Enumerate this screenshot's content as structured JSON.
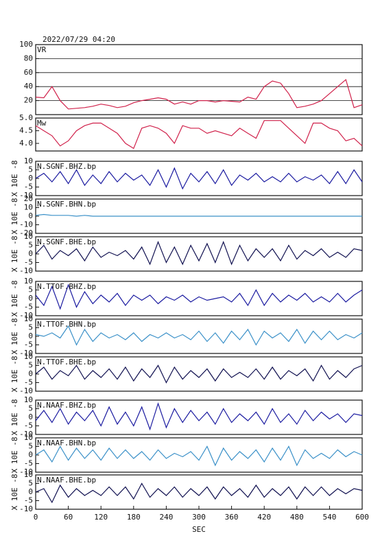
{
  "chart_data": [
    {
      "type": "line",
      "title": "2022/07/29 04:20",
      "xlim": [
        0,
        600
      ],
      "ylim": [
        0,
        100
      ],
      "yticks": [
        20,
        40,
        60,
        80,
        100
      ],
      "grid": true,
      "x": [
        0,
        15,
        30,
        45,
        60,
        75,
        90,
        105,
        120,
        135,
        150,
        165,
        180,
        195,
        210,
        225,
        240,
        255,
        270,
        285,
        300,
        315,
        330,
        345,
        360,
        375,
        390,
        405,
        420,
        435,
        450,
        465,
        480,
        495,
        510,
        525,
        540,
        555,
        570,
        585,
        600
      ],
      "series": [
        {
          "name": "VR",
          "color": "#d0204a",
          "values": [
            25,
            24,
            40,
            20,
            8,
            9,
            10,
            12,
            15,
            13,
            10,
            12,
            17,
            20,
            22,
            24,
            22,
            15,
            18,
            15,
            20,
            20,
            18,
            20,
            19,
            18,
            25,
            22,
            40,
            48,
            45,
            30,
            10,
            12,
            15,
            20,
            30,
            40,
            50,
            10,
            14
          ]
        }
      ]
    },
    {
      "type": "line",
      "xlim": [
        0,
        600
      ],
      "ylim": [
        3.7,
        5.0
      ],
      "yticks": [
        {
          "value": 4,
          "label": "4.0"
        },
        4.5,
        {
          "value": 5,
          "label": "5.0"
        }
      ],
      "grid": false,
      "x": [
        0,
        15,
        30,
        45,
        60,
        75,
        90,
        105,
        120,
        135,
        150,
        165,
        180,
        195,
        210,
        225,
        240,
        255,
        270,
        285,
        300,
        315,
        330,
        345,
        360,
        375,
        390,
        405,
        420,
        435,
        450,
        465,
        480,
        495,
        510,
        525,
        540,
        555,
        570,
        585,
        600
      ],
      "series": [
        {
          "name": "Mw",
          "color": "#d0204a",
          "values": [
            4.7,
            4.5,
            4.3,
            3.9,
            4.1,
            4.5,
            4.7,
            4.8,
            4.8,
            4.6,
            4.4,
            4.0,
            3.8,
            4.6,
            4.7,
            4.6,
            4.4,
            4.0,
            4.7,
            4.6,
            4.6,
            4.4,
            4.5,
            4.4,
            4.3,
            4.6,
            4.4,
            4.2,
            4.9,
            4.9,
            4.9,
            4.6,
            4.3,
            4.0,
            4.8,
            4.8,
            4.6,
            4.5,
            4.1,
            4.2,
            3.9
          ]
        }
      ]
    },
    {
      "type": "line",
      "ylabel": "X 10E -8",
      "xlim": [
        0,
        600
      ],
      "ylim": [
        -10,
        10
      ],
      "yticks": [
        -10,
        -5,
        0,
        5,
        10
      ],
      "grid": false,
      "x": [
        0,
        15,
        30,
        45,
        60,
        75,
        90,
        105,
        120,
        135,
        150,
        165,
        180,
        195,
        210,
        225,
        240,
        255,
        270,
        285,
        300,
        315,
        330,
        345,
        360,
        375,
        390,
        405,
        420,
        435,
        450,
        465,
        480,
        495,
        510,
        525,
        540,
        555,
        570,
        585,
        600
      ],
      "series": [
        {
          "name": "N.SGNF.BHZ.bp",
          "color": "#1a1aa0",
          "values": [
            0,
            3,
            -2,
            4,
            -3,
            5,
            -4,
            2,
            -3,
            4,
            -2,
            3,
            -1,
            2,
            -4,
            5,
            -5,
            6,
            -6,
            3,
            -2,
            4,
            -3,
            5,
            -4,
            2,
            -1,
            3,
            -2,
            1,
            -2,
            3,
            -2,
            1,
            -1,
            2,
            -3,
            4,
            -3,
            5,
            -2
          ]
        }
      ]
    },
    {
      "type": "line",
      "ylabel": "X 10E -8",
      "xlim": [
        0,
        600
      ],
      "ylim": [
        -20,
        20
      ],
      "yticks": [
        -20,
        -10,
        0,
        10,
        20
      ],
      "grid": false,
      "x": [
        0,
        15,
        30,
        45,
        60,
        75,
        90,
        105,
        120,
        135,
        150,
        165,
        180,
        195,
        210,
        225,
        240,
        255,
        270,
        285,
        300,
        315,
        330,
        345,
        360,
        375,
        390,
        405,
        420,
        435,
        450,
        465,
        480,
        495,
        510,
        525,
        540,
        555,
        570,
        585,
        600
      ],
      "series": [
        {
          "name": "N.SGNF.BHN.bp",
          "color": "#3a90c8",
          "values": [
            1,
            2,
            1,
            1,
            1,
            0,
            1,
            0,
            0,
            0,
            0,
            0,
            0,
            0,
            0,
            0,
            0,
            0,
            0,
            0,
            0,
            0,
            0,
            0,
            0,
            0,
            0,
            0,
            0,
            0,
            0,
            0,
            0,
            0,
            0,
            0,
            0,
            0,
            0,
            0,
            0
          ]
        }
      ]
    },
    {
      "type": "line",
      "ylabel": "X 10E -8",
      "xlim": [
        0,
        600
      ],
      "ylim": [
        -10,
        10
      ],
      "yticks": [
        -10,
        -5,
        0,
        5,
        10
      ],
      "grid": false,
      "x": [
        0,
        15,
        30,
        45,
        60,
        75,
        90,
        105,
        120,
        135,
        150,
        165,
        180,
        195,
        210,
        225,
        240,
        255,
        270,
        285,
        300,
        315,
        330,
        345,
        360,
        375,
        390,
        405,
        420,
        435,
        450,
        465,
        480,
        495,
        510,
        525,
        540,
        555,
        570,
        585,
        600
      ],
      "series": [
        {
          "name": "N.SGNF.BHE.bp",
          "color": "#101050",
          "values": [
            0,
            5,
            -3,
            2,
            -1,
            3,
            -4,
            4,
            -2,
            1,
            -1,
            2,
            -3,
            4,
            -6,
            7,
            -5,
            4,
            -6,
            5,
            -4,
            6,
            -5,
            7,
            -6,
            5,
            -4,
            3,
            -2,
            3,
            -4,
            5,
            -3,
            2,
            -1,
            3,
            -2,
            1,
            -2,
            3,
            2
          ]
        }
      ]
    },
    {
      "type": "line",
      "ylabel": "X 10E -8",
      "xlim": [
        0,
        600
      ],
      "ylim": [
        -10,
        10
      ],
      "yticks": [
        -10,
        -5,
        0,
        5,
        10
      ],
      "grid": false,
      "x": [
        0,
        15,
        30,
        45,
        60,
        75,
        90,
        105,
        120,
        135,
        150,
        165,
        180,
        195,
        210,
        225,
        240,
        255,
        270,
        285,
        300,
        315,
        330,
        345,
        360,
        375,
        390,
        405,
        420,
        435,
        450,
        465,
        480,
        495,
        510,
        525,
        540,
        555,
        570,
        585,
        600
      ],
      "series": [
        {
          "name": "N.TTOF.BHZ.bp",
          "color": "#1a1aa0",
          "values": [
            2,
            -4,
            7,
            -6,
            8,
            -5,
            4,
            -3,
            2,
            -2,
            3,
            -4,
            2,
            -1,
            2,
            -3,
            1,
            -1,
            2,
            -2,
            1,
            -1,
            0,
            1,
            -2,
            3,
            -4,
            5,
            -4,
            3,
            -2,
            2,
            -1,
            3,
            -2,
            1,
            -2,
            3,
            -2,
            2,
            5
          ]
        }
      ]
    },
    {
      "type": "line",
      "ylabel": "X 10E -8",
      "xlim": [
        0,
        600
      ],
      "ylim": [
        -10,
        10
      ],
      "yticks": [
        -10,
        -5,
        0,
        5,
        10
      ],
      "grid": false,
      "x": [
        0,
        15,
        30,
        45,
        60,
        75,
        90,
        105,
        120,
        135,
        150,
        165,
        180,
        195,
        210,
        225,
        240,
        255,
        270,
        285,
        300,
        315,
        330,
        345,
        360,
        375,
        390,
        405,
        420,
        435,
        450,
        465,
        480,
        495,
        510,
        525,
        540,
        555,
        570,
        585,
        600
      ],
      "series": [
        {
          "name": "N.TTOF.BHN.bp",
          "color": "#3a90c8",
          "values": [
            1,
            0,
            2,
            -1,
            6,
            -5,
            4,
            -3,
            2,
            -1,
            1,
            -2,
            2,
            -3,
            1,
            -1,
            2,
            -1,
            1,
            -2,
            3,
            -3,
            2,
            -4,
            3,
            -2,
            4,
            -5,
            3,
            -1,
            2,
            -3,
            4,
            -4,
            3,
            -2,
            3,
            -2,
            1,
            -1,
            2
          ]
        }
      ]
    },
    {
      "type": "line",
      "ylabel": "X 10E -8",
      "xlim": [
        0,
        600
      ],
      "ylim": [
        -10,
        10
      ],
      "yticks": [
        -10,
        -5,
        0,
        5,
        10
      ],
      "grid": false,
      "x": [
        0,
        15,
        30,
        45,
        60,
        75,
        90,
        105,
        120,
        135,
        150,
        165,
        180,
        195,
        210,
        225,
        240,
        255,
        270,
        285,
        300,
        315,
        330,
        345,
        360,
        375,
        390,
        405,
        420,
        435,
        450,
        465,
        480,
        495,
        510,
        525,
        540,
        555,
        570,
        585,
        600
      ],
      "series": [
        {
          "name": "N.TTOF.BHE.bp",
          "color": "#101050",
          "values": [
            0,
            4,
            -3,
            2,
            -1,
            5,
            -3,
            2,
            -2,
            3,
            -3,
            4,
            -4,
            3,
            -2,
            5,
            -5,
            4,
            -3,
            2,
            -2,
            3,
            -4,
            3,
            -2,
            1,
            -2,
            3,
            -3,
            4,
            -3,
            2,
            -1,
            3,
            -4,
            5,
            -3,
            2,
            -2,
            3,
            5
          ]
        }
      ]
    },
    {
      "type": "line",
      "ylabel": "X 10E -8",
      "xlim": [
        0,
        600
      ],
      "ylim": [
        -10,
        10
      ],
      "yticks": [
        -10,
        -5,
        0,
        5,
        10
      ],
      "grid": false,
      "x": [
        0,
        15,
        30,
        45,
        60,
        75,
        90,
        105,
        120,
        135,
        150,
        165,
        180,
        195,
        210,
        225,
        240,
        255,
        270,
        285,
        300,
        315,
        330,
        345,
        360,
        375,
        390,
        405,
        420,
        435,
        450,
        465,
        480,
        495,
        510,
        525,
        540,
        555,
        570,
        585,
        600
      ],
      "series": [
        {
          "name": "N.NAAF.BHZ.bp",
          "color": "#1a1aa0",
          "values": [
            -2,
            4,
            -3,
            5,
            -4,
            3,
            -2,
            4,
            -5,
            6,
            -4,
            3,
            -5,
            6,
            -7,
            8,
            -6,
            5,
            -3,
            4,
            -2,
            3,
            -4,
            5,
            -3,
            2,
            -2,
            3,
            -4,
            5,
            -3,
            2,
            -4,
            4,
            -2,
            3,
            -1,
            2,
            -3,
            2,
            1
          ]
        }
      ]
    },
    {
      "type": "line",
      "ylabel": "X 10E -8",
      "xlim": [
        0,
        600
      ],
      "ylim": [
        -10,
        10
      ],
      "yticks": [
        -10,
        -5,
        0,
        5,
        10
      ],
      "grid": false,
      "x": [
        0,
        15,
        30,
        45,
        60,
        75,
        90,
        105,
        120,
        135,
        150,
        165,
        180,
        195,
        210,
        225,
        240,
        255,
        270,
        285,
        300,
        315,
        330,
        345,
        360,
        375,
        390,
        405,
        420,
        435,
        450,
        465,
        480,
        495,
        510,
        525,
        540,
        555,
        570,
        585,
        600
      ],
      "series": [
        {
          "name": "N.NAAF.BHN.bp",
          "color": "#3a90c8",
          "values": [
            0,
            3,
            -4,
            5,
            -3,
            4,
            -2,
            3,
            -3,
            4,
            -2,
            3,
            -2,
            2,
            -3,
            3,
            -2,
            1,
            -1,
            2,
            -3,
            5,
            -6,
            4,
            -3,
            2,
            -2,
            3,
            -4,
            4,
            -3,
            5,
            -6,
            3,
            -2,
            1,
            -2,
            3,
            -1,
            2,
            0
          ]
        }
      ]
    },
    {
      "type": "line",
      "ylabel": "X 10E -8",
      "xlabel": "SEC",
      "xlim": [
        0,
        600
      ],
      "xticks": [
        0,
        60,
        120,
        180,
        240,
        300,
        360,
        420,
        480,
        540,
        600
      ],
      "ylim": [
        -10,
        10
      ],
      "yticks": [
        -10,
        -5,
        0,
        5,
        10
      ],
      "grid": false,
      "x": [
        0,
        15,
        30,
        45,
        60,
        75,
        90,
        105,
        120,
        135,
        150,
        165,
        180,
        195,
        210,
        225,
        240,
        255,
        270,
        285,
        300,
        315,
        330,
        345,
        360,
        375,
        390,
        405,
        420,
        435,
        450,
        465,
        480,
        495,
        510,
        525,
        540,
        555,
        570,
        585,
        600
      ],
      "series": [
        {
          "name": "N.NAAF.BHE.bp",
          "color": "#101050",
          "values": [
            0,
            2,
            -6,
            4,
            -3,
            2,
            -2,
            1,
            -2,
            3,
            -2,
            3,
            -4,
            5,
            -3,
            2,
            -2,
            3,
            -3,
            2,
            -2,
            3,
            -4,
            3,
            -2,
            2,
            -3,
            4,
            -3,
            2,
            -2,
            3,
            -4,
            3,
            -2,
            3,
            -2,
            2,
            -1,
            2,
            1
          ]
        }
      ]
    }
  ]
}
